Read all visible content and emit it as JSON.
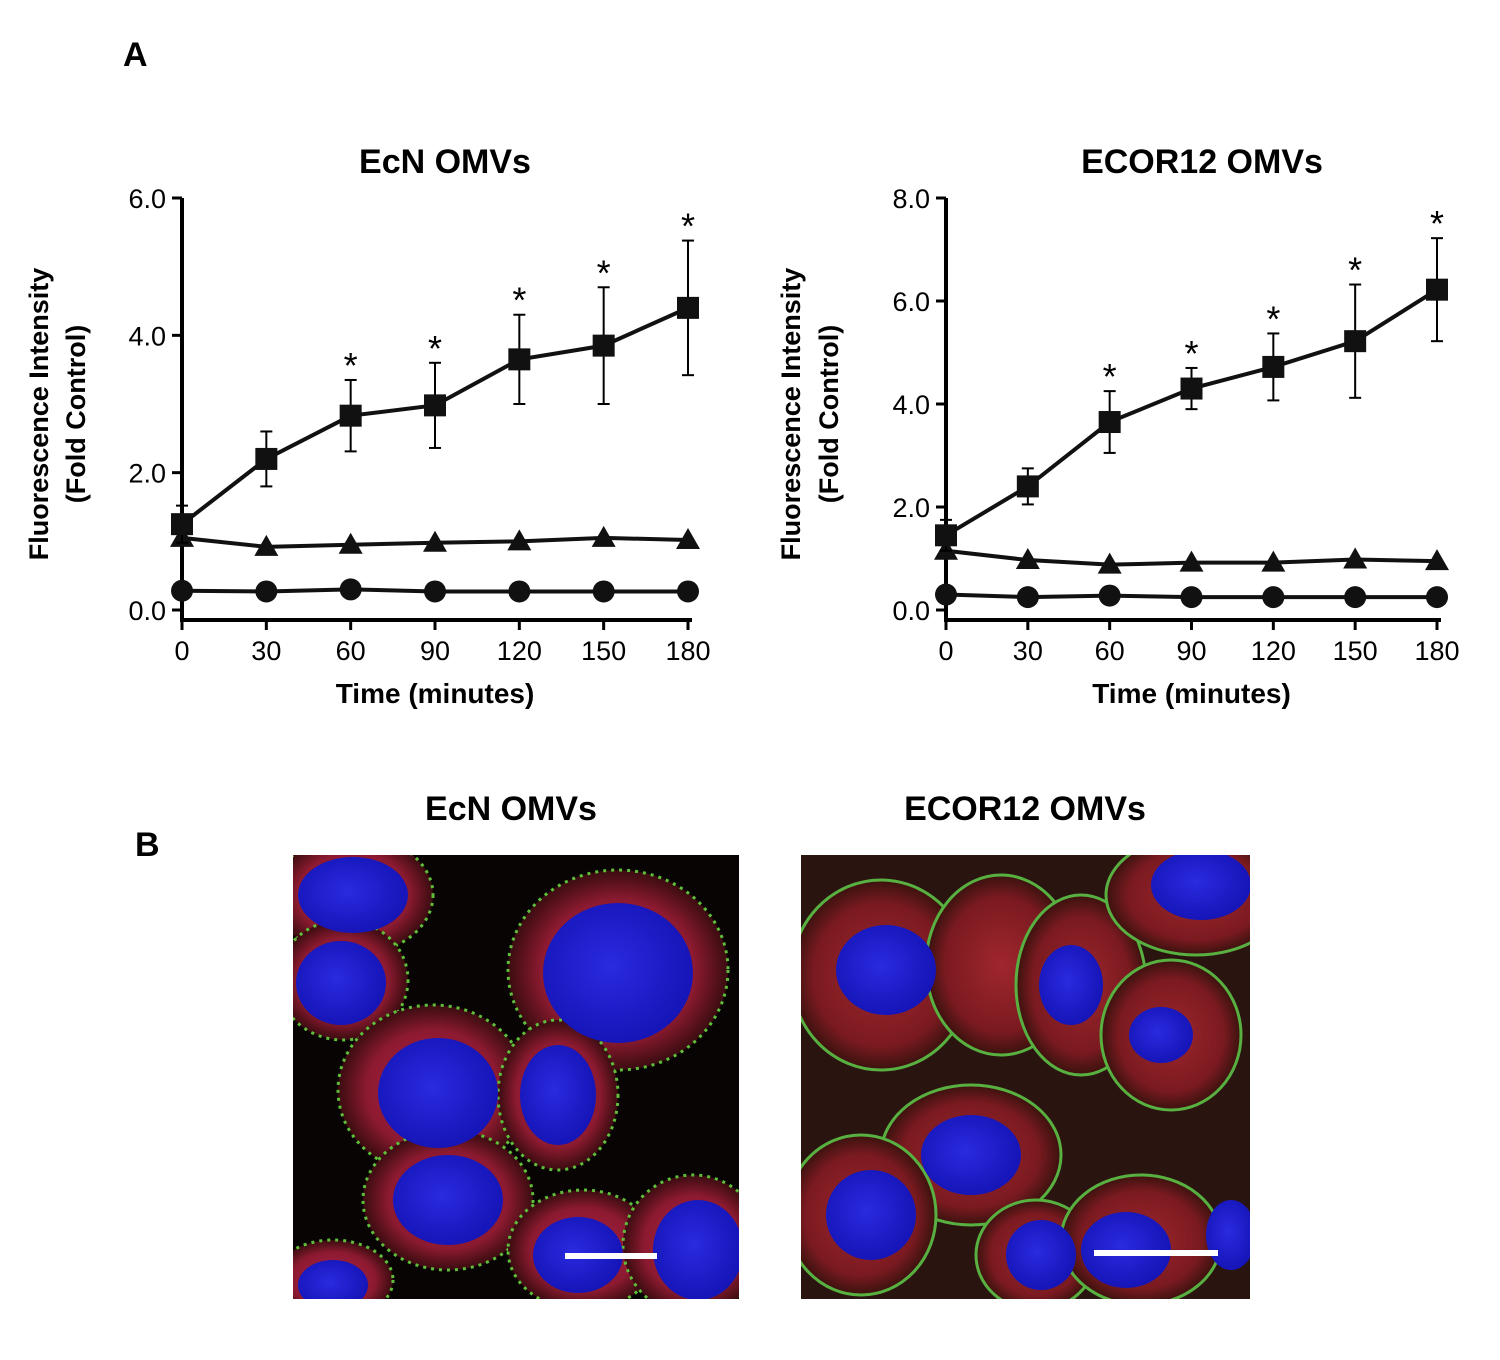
{
  "panel_a": {
    "letter": "A"
  },
  "panel_b": {
    "letter": "B",
    "images": [
      {
        "title": "EcN OMVs"
      },
      {
        "title": "ECOR12 OMVs"
      }
    ]
  },
  "chart_data": [
    {
      "type": "line",
      "title": "EcN OMVs",
      "xlabel": "Time (minutes)",
      "ylabel_line1": "Fluorescence Intensity",
      "ylabel_line2": "(Fold Control)",
      "x": [
        0,
        30,
        60,
        90,
        120,
        150,
        180
      ],
      "xticks": [
        "0",
        "30",
        "60",
        "90",
        "120",
        "150",
        "180"
      ],
      "ylim": [
        0,
        6
      ],
      "yticks": [
        "0.0",
        "2.0",
        "4.0",
        "6.0"
      ],
      "ytick_values": [
        0,
        2,
        4,
        6
      ],
      "series": [
        {
          "marker": "square",
          "values": [
            1.25,
            2.2,
            2.83,
            2.98,
            3.65,
            3.85,
            4.4
          ],
          "errors": [
            0.27,
            0.4,
            0.52,
            0.62,
            0.65,
            0.85,
            0.98
          ],
          "significance": [
            "",
            "",
            "*",
            "*",
            "*",
            "*",
            "*"
          ]
        },
        {
          "marker": "triangle",
          "values": [
            1.05,
            0.92,
            0.95,
            0.98,
            1.0,
            1.05,
            1.02
          ]
        },
        {
          "marker": "circle",
          "values": [
            0.28,
            0.27,
            0.3,
            0.27,
            0.27,
            0.27,
            0.27
          ]
        }
      ]
    },
    {
      "type": "line",
      "title": "ECOR12 OMVs",
      "xlabel": "Time (minutes)",
      "ylabel_line1": "Fluorescence Intensity",
      "ylabel_line2": "(Fold Control)",
      "x": [
        0,
        30,
        60,
        90,
        120,
        150,
        180
      ],
      "xticks": [
        "0",
        "30",
        "60",
        "90",
        "120",
        "150",
        "180"
      ],
      "ylim": [
        0,
        8
      ],
      "yticks": [
        "0.0",
        "2.0",
        "4.0",
        "6.0",
        "8.0"
      ],
      "ytick_values": [
        0,
        2,
        4,
        6,
        8
      ],
      "series": [
        {
          "marker": "square",
          "values": [
            1.45,
            2.4,
            3.65,
            4.3,
            4.72,
            5.22,
            6.22
          ],
          "errors": [
            0.3,
            0.35,
            0.6,
            0.4,
            0.65,
            1.1,
            1.0
          ],
          "significance": [
            "",
            "",
            "*",
            "*",
            "*",
            "*",
            "*"
          ]
        },
        {
          "marker": "triangle",
          "values": [
            1.15,
            0.97,
            0.88,
            0.92,
            0.92,
            0.98,
            0.95
          ]
        },
        {
          "marker": "circle",
          "values": [
            0.3,
            0.25,
            0.28,
            0.25,
            0.25,
            0.25,
            0.25
          ]
        }
      ]
    }
  ]
}
